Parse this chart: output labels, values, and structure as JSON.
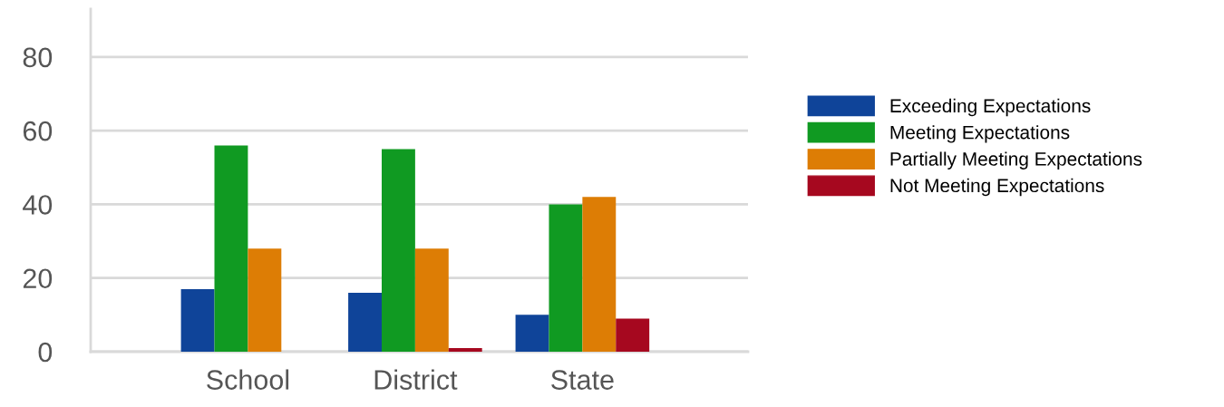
{
  "chart_data": {
    "type": "bar",
    "categories": [
      "School",
      "District",
      "State"
    ],
    "series": [
      {
        "name": "Exceeding Expectations",
        "color": "#0f4499",
        "values": [
          17,
          16,
          10
        ]
      },
      {
        "name": "Meeting Expectations",
        "color": "#109a22",
        "values": [
          56,
          55,
          40
        ]
      },
      {
        "name": "Partially Meeting Expectations",
        "color": "#dd7d05",
        "values": [
          28,
          28,
          42
        ]
      },
      {
        "name": "Not Meeting Expectations",
        "color": "#a6081f",
        "values": [
          0,
          1,
          9
        ]
      }
    ],
    "ylim": [
      0,
      93
    ],
    "yticks": [
      0,
      20,
      40,
      60,
      80
    ],
    "grid": "y",
    "legend": "right"
  }
}
